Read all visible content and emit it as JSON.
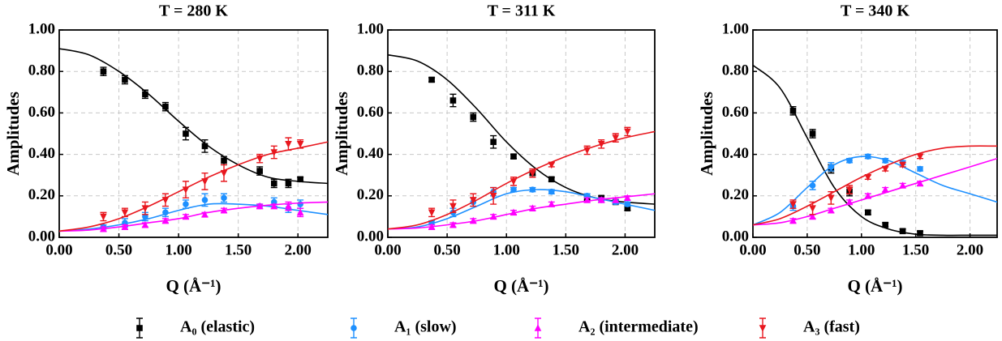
{
  "chart_data": [
    {
      "type": "scatter",
      "title": "T = 280 K",
      "x_label": "Q (Å⁻¹)",
      "y_label": "Amplitudes",
      "xlim": [
        0,
        2.25
      ],
      "xticks": [
        {
          "value": 0,
          "label": "0.00"
        },
        {
          "value": 0.5,
          "label": "0.50"
        },
        {
          "value": 1,
          "label": "1.00"
        },
        {
          "value": 1.5,
          "label": "1.50"
        },
        {
          "value": 2,
          "label": "2.00"
        }
      ],
      "ylim": [
        0,
        1
      ],
      "yticks": [
        {
          "value": 0,
          "label": "0.00"
        },
        {
          "value": 0.2,
          "label": "0.20"
        },
        {
          "value": 0.4,
          "label": "0.40"
        },
        {
          "value": 0.6,
          "label": "0.60"
        },
        {
          "value": 0.8,
          "label": "0.80"
        },
        {
          "value": 1,
          "label": "1.00"
        }
      ],
      "grid": true,
      "x": [
        0.37,
        0.55,
        0.72,
        0.89,
        1.06,
        1.22,
        1.38,
        1.68,
        1.8,
        1.92,
        2.02
      ],
      "fit_x": [
        0,
        0.25,
        0.5,
        0.75,
        1,
        1.25,
        1.5,
        1.75,
        2,
        2.25
      ],
      "series": [
        {
          "name": "A₀ (elastic)",
          "color": "#000000",
          "marker": "square",
          "values": [
            0.8,
            0.76,
            0.69,
            0.63,
            0.5,
            0.44,
            0.37,
            0.32,
            0.26,
            0.26,
            0.28
          ],
          "errors": [
            0.02,
            0.02,
            0.02,
            0.02,
            0.03,
            0.03,
            0.02,
            0.02,
            0.02,
            0.02,
            0.01
          ],
          "fit": [
            0.91,
            0.88,
            0.8,
            0.69,
            0.56,
            0.44,
            0.35,
            0.29,
            0.27,
            0.26
          ]
        },
        {
          "name": "A₁ (slow)",
          "color": "#1e90ff",
          "marker": "circle",
          "values": [
            0.05,
            0.07,
            0.1,
            0.12,
            0.16,
            0.18,
            0.19,
            0.15,
            0.17,
            0.14,
            0.16
          ],
          "errors": [
            0.01,
            0.02,
            0.02,
            0.02,
            0.02,
            0.03,
            0.02,
            0.01,
            0.02,
            0.02,
            0.02
          ],
          "fit": [
            0.03,
            0.04,
            0.06,
            0.09,
            0.13,
            0.16,
            0.16,
            0.15,
            0.13,
            0.11
          ]
        },
        {
          "name": "A₂ (intermediate)",
          "color": "#ff00ff",
          "marker": "triangle-up",
          "values": [
            0.04,
            0.05,
            0.06,
            0.08,
            0.1,
            0.11,
            0.13,
            0.15,
            0.15,
            0.15,
            0.12
          ],
          "errors": [
            0.01,
            0.01,
            0.01,
            0.01,
            0.01,
            0.01,
            0.01,
            0.01,
            0.01,
            0.02,
            0.02
          ],
          "fit": [
            0.03,
            0.035,
            0.05,
            0.07,
            0.09,
            0.12,
            0.14,
            0.155,
            0.165,
            0.17
          ]
        },
        {
          "name": "A₃ (fast)",
          "color": "#e8171e",
          "marker": "triangle-down",
          "values": [
            0.1,
            0.12,
            0.14,
            0.18,
            0.23,
            0.27,
            0.31,
            0.38,
            0.41,
            0.45,
            0.45
          ],
          "errors": [
            0.02,
            0.02,
            0.03,
            0.03,
            0.04,
            0.04,
            0.04,
            0.02,
            0.03,
            0.03,
            0.02
          ],
          "fit": [
            0.03,
            0.05,
            0.09,
            0.15,
            0.22,
            0.29,
            0.35,
            0.4,
            0.43,
            0.46
          ]
        }
      ]
    },
    {
      "type": "scatter",
      "title": "T = 311 K",
      "x_label": "Q (Å⁻¹)",
      "y_label": "Amplitudes",
      "xlim": [
        0,
        2.25
      ],
      "xticks": [
        {
          "value": 0,
          "label": "0.00"
        },
        {
          "value": 0.5,
          "label": "0.50"
        },
        {
          "value": 1,
          "label": "1.00"
        },
        {
          "value": 1.5,
          "label": "1.50"
        },
        {
          "value": 2,
          "label": "2.00"
        }
      ],
      "ylim": [
        0,
        1
      ],
      "yticks": [
        {
          "value": 0,
          "label": "0.00"
        },
        {
          "value": 0.2,
          "label": "0.20"
        },
        {
          "value": 0.4,
          "label": "0.40"
        },
        {
          "value": 0.6,
          "label": "0.60"
        },
        {
          "value": 0.8,
          "label": "0.80"
        },
        {
          "value": 1,
          "label": "1.00"
        }
      ],
      "grid": true,
      "x": [
        0.37,
        0.55,
        0.72,
        0.89,
        1.06,
        1.22,
        1.38,
        1.68,
        1.8,
        1.92,
        2.02
      ],
      "fit_x": [
        0,
        0.25,
        0.5,
        0.75,
        1,
        1.25,
        1.5,
        1.75,
        2,
        2.25
      ],
      "series": [
        {
          "color": "#000000",
          "marker": "square",
          "values": [
            0.76,
            0.66,
            0.58,
            0.46,
            0.39,
            0.31,
            0.28,
            0.19,
            0.19,
            0.17,
            0.14
          ],
          "errors": [
            0.01,
            0.03,
            0.02,
            0.03,
            0.01,
            0.01,
            0.01,
            0.01,
            0.01,
            0.01,
            0.01
          ],
          "fit": [
            0.88,
            0.85,
            0.76,
            0.62,
            0.46,
            0.33,
            0.24,
            0.19,
            0.17,
            0.16
          ]
        },
        {
          "color": "#1e90ff",
          "marker": "circle",
          "values": [
            0.07,
            0.12,
            0.17,
            0.22,
            0.23,
            0.23,
            0.22,
            0.2,
            0.18,
            0.17,
            0.16
          ],
          "errors": [
            0.01,
            0.02,
            0.02,
            0.02,
            0.01,
            0.01,
            0.01,
            0.01,
            0.01,
            0.01,
            0.01
          ],
          "fit": [
            0.04,
            0.05,
            0.09,
            0.15,
            0.21,
            0.23,
            0.22,
            0.19,
            0.16,
            0.13
          ]
        },
        {
          "color": "#ff00ff",
          "marker": "triangle-up",
          "values": [
            0.05,
            0.06,
            0.08,
            0.1,
            0.12,
            0.14,
            0.16,
            0.18,
            0.18,
            0.18,
            0.19
          ],
          "errors": [
            0.01,
            0.01,
            0.01,
            0.01,
            0.01,
            0.01,
            0.01,
            0.01,
            0.01,
            0.01,
            0.01
          ],
          "fit": [
            0.04,
            0.045,
            0.06,
            0.08,
            0.11,
            0.14,
            0.16,
            0.18,
            0.195,
            0.21
          ]
        },
        {
          "color": "#e8171e",
          "marker": "triangle-down",
          "values": [
            0.12,
            0.15,
            0.18,
            0.2,
            0.27,
            0.31,
            0.35,
            0.42,
            0.45,
            0.48,
            0.51
          ],
          "errors": [
            0.02,
            0.03,
            0.03,
            0.04,
            0.02,
            0.02,
            0.01,
            0.02,
            0.02,
            0.02,
            0.02
          ],
          "fit": [
            0.04,
            0.06,
            0.11,
            0.18,
            0.26,
            0.33,
            0.39,
            0.44,
            0.48,
            0.51
          ]
        }
      ]
    },
    {
      "type": "scatter",
      "title": "T = 340 K",
      "x_label": "Q (Å⁻¹)",
      "y_label": "Amplitudes",
      "xlim": [
        0,
        2.25
      ],
      "xticks": [
        {
          "value": 0,
          "label": "0.00"
        },
        {
          "value": 0.5,
          "label": "0.50"
        },
        {
          "value": 1,
          "label": "1.00"
        },
        {
          "value": 1.5,
          "label": "1.50"
        },
        {
          "value": 2,
          "label": "2.00"
        }
      ],
      "ylim": [
        0,
        1
      ],
      "yticks": [
        {
          "value": 0,
          "label": "0.00"
        },
        {
          "value": 0.2,
          "label": "0.20"
        },
        {
          "value": 0.4,
          "label": "0.40"
        },
        {
          "value": 0.6,
          "label": "0.60"
        },
        {
          "value": 0.8,
          "label": "0.80"
        },
        {
          "value": 1,
          "label": "1.00"
        }
      ],
      "grid": true,
      "x": [
        0.37,
        0.55,
        0.72,
        0.89,
        1.06,
        1.22,
        1.38,
        1.54
      ],
      "fit_x": [
        0,
        0.25,
        0.5,
        0.75,
        1,
        1.25,
        1.5,
        1.75,
        2,
        2.25
      ],
      "series": [
        {
          "color": "#000000",
          "marker": "square",
          "values": [
            0.61,
            0.5,
            0.33,
            0.22,
            0.12,
            0.06,
            0.03,
            0.02
          ],
          "errors": [
            0.02,
            0.02,
            0.02,
            0.02,
            0.01,
            0.01,
            0.01,
            0.01
          ],
          "fit": [
            0.83,
            0.72,
            0.48,
            0.24,
            0.1,
            0.04,
            0.015,
            0.01,
            0.01,
            0.01
          ]
        },
        {
          "color": "#1e90ff",
          "marker": "circle",
          "values": [
            0.15,
            0.25,
            0.34,
            0.37,
            0.39,
            0.37,
            0.36,
            0.33
          ],
          "errors": [
            0.02,
            0.02,
            0.02,
            0.01,
            0.01,
            0.01,
            0.01,
            0.01
          ],
          "fit": [
            0.06,
            0.12,
            0.24,
            0.35,
            0.39,
            0.37,
            0.31,
            0.25,
            0.21,
            0.17
          ]
        },
        {
          "color": "#ff00ff",
          "marker": "triangle-up",
          "values": [
            0.08,
            0.1,
            0.13,
            0.17,
            0.2,
            0.23,
            0.25,
            0.26
          ],
          "errors": [
            0.01,
            0.01,
            0.01,
            0.01,
            0.01,
            0.01,
            0.01,
            0.01
          ],
          "fit": [
            0.06,
            0.07,
            0.1,
            0.14,
            0.18,
            0.22,
            0.26,
            0.3,
            0.34,
            0.38
          ]
        },
        {
          "color": "#e8171e",
          "marker": "triangle-down",
          "values": [
            0.16,
            0.14,
            0.19,
            0.23,
            0.29,
            0.33,
            0.35,
            0.39
          ],
          "errors": [
            0.02,
            0.03,
            0.03,
            0.02,
            0.01,
            0.01,
            0.01,
            0.01
          ],
          "fit": [
            0.06,
            0.09,
            0.15,
            0.22,
            0.29,
            0.35,
            0.4,
            0.43,
            0.44,
            0.44
          ]
        }
      ]
    }
  ]
}
